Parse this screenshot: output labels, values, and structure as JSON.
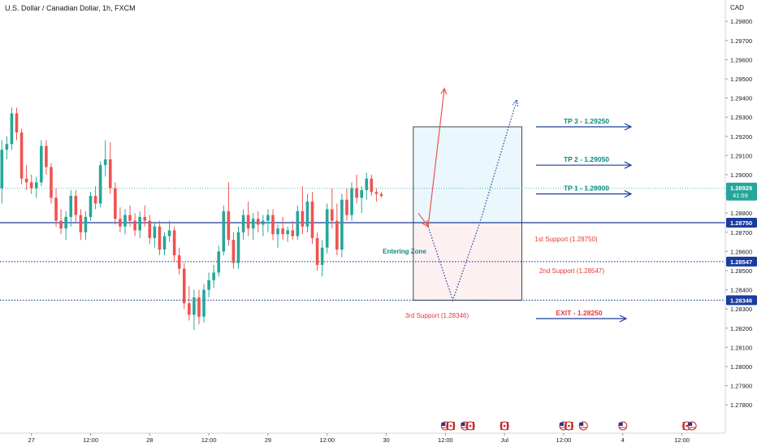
{
  "header": {
    "title": "U.S. Dollar / Canadian Dollar, 1h, FXCM",
    "currency": "CAD"
  },
  "chart_data": {
    "type": "candlestick",
    "title": "U.S. Dollar / Canadian Dollar, 1h, FXCM",
    "ylim": [
      1.2767,
      1.2995
    ],
    "y_ticks": [
      1.298,
      1.297,
      1.296,
      1.295,
      1.294,
      1.293,
      1.292,
      1.291,
      1.29,
      1.289,
      1.288,
      1.287,
      1.286,
      1.285,
      1.284,
      1.283,
      1.282,
      1.281,
      1.28,
      1.279,
      1.278
    ],
    "y_tick_labels": [
      "1.29800",
      "1.29700",
      "1.29600",
      "1.29500",
      "1.29400",
      "1.29300",
      "1.29200",
      "1.29100",
      "1.29000",
      "1.28900",
      "1.28800",
      "1.28700",
      "1.28600",
      "1.28500",
      "1.28400",
      "1.28300",
      "1.28200",
      "1.28100",
      "1.28000",
      "1.27900",
      "1.27800"
    ],
    "x_ticks": [
      {
        "label": "27",
        "i": 6
      },
      {
        "label": "12:00",
        "i": 18
      },
      {
        "label": "28",
        "i": 30
      },
      {
        "label": "12:00",
        "i": 42
      },
      {
        "label": "29",
        "i": 54
      },
      {
        "label": "12:00",
        "i": 66
      },
      {
        "label": "30",
        "i": 78
      },
      {
        "label": "12:00",
        "i": 90
      },
      {
        "label": "Jul",
        "i": 102
      },
      {
        "label": "12:00",
        "i": 114
      },
      {
        "label": "4",
        "i": 126
      },
      {
        "label": "12:00",
        "i": 138
      }
    ],
    "last_candle_index": 77,
    "up_color": "#26a69a",
    "down_color": "#ef5350",
    "candles": [
      [
        1.2893,
        1.2918,
        1.2885,
        1.2913
      ],
      [
        1.2913,
        1.292,
        1.2908,
        1.2916
      ],
      [
        1.2916,
        1.2935,
        1.2913,
        1.2932
      ],
      [
        1.2932,
        1.2935,
        1.2918,
        1.2922
      ],
      [
        1.2922,
        1.2924,
        1.2895,
        1.2898
      ],
      [
        1.2898,
        1.2905,
        1.2892,
        1.2896
      ],
      [
        1.2896,
        1.29,
        1.289,
        1.2893
      ],
      [
        1.2893,
        1.2899,
        1.2888,
        1.2896
      ],
      [
        1.2896,
        1.2918,
        1.2894,
        1.2915
      ],
      [
        1.2915,
        1.2918,
        1.29,
        1.2904
      ],
      [
        1.2904,
        1.2906,
        1.2885,
        1.2888
      ],
      [
        1.2888,
        1.2893,
        1.2873,
        1.2876
      ],
      [
        1.2876,
        1.2882,
        1.2869,
        1.2872
      ],
      [
        1.2872,
        1.2881,
        1.2866,
        1.2878
      ],
      [
        1.2878,
        1.2892,
        1.2873,
        1.2889
      ],
      [
        1.2889,
        1.2892,
        1.2875,
        1.2879
      ],
      [
        1.2879,
        1.2882,
        1.2866,
        1.287
      ],
      [
        1.287,
        1.2881,
        1.2866,
        1.2878
      ],
      [
        1.2878,
        1.2891,
        1.2876,
        1.2889
      ],
      [
        1.2889,
        1.2894,
        1.2882,
        1.2885
      ],
      [
        1.2885,
        1.2907,
        1.2883,
        1.2905
      ],
      [
        1.2905,
        1.2918,
        1.2899,
        1.2908
      ],
      [
        1.2908,
        1.2917,
        1.289,
        1.2893
      ],
      [
        1.2893,
        1.2896,
        1.2874,
        1.2877
      ],
      [
        1.2877,
        1.2883,
        1.287,
        1.2873
      ],
      [
        1.2873,
        1.2882,
        1.2869,
        1.2879
      ],
      [
        1.2879,
        1.2884,
        1.2873,
        1.2876
      ],
      [
        1.2876,
        1.288,
        1.2868,
        1.2871
      ],
      [
        1.2871,
        1.2881,
        1.2867,
        1.2878
      ],
      [
        1.2878,
        1.2884,
        1.2873,
        1.2876
      ],
      [
        1.2876,
        1.2879,
        1.2864,
        1.2867
      ],
      [
        1.2867,
        1.2875,
        1.2862,
        1.2873
      ],
      [
        1.2873,
        1.2876,
        1.2858,
        1.2861
      ],
      [
        1.2861,
        1.287,
        1.2858,
        1.2868
      ],
      [
        1.2868,
        1.2876,
        1.2865,
        1.2871
      ],
      [
        1.2871,
        1.2873,
        1.2855,
        1.2858
      ],
      [
        1.2858,
        1.2862,
        1.2848,
        1.2851
      ],
      [
        1.2851,
        1.2854,
        1.283,
        1.2833
      ],
      [
        1.2833,
        1.2842,
        1.2824,
        1.2827
      ],
      [
        1.2827,
        1.284,
        1.2819,
        1.2836
      ],
      [
        1.2836,
        1.284,
        1.2822,
        1.2826
      ],
      [
        1.2826,
        1.2843,
        1.2823,
        1.284
      ],
      [
        1.284,
        1.2849,
        1.2836,
        1.2845
      ],
      [
        1.2845,
        1.2853,
        1.2841,
        1.2849
      ],
      [
        1.2849,
        1.2863,
        1.2847,
        1.286
      ],
      [
        1.286,
        1.2884,
        1.2858,
        1.2881
      ],
      [
        1.2881,
        1.2896,
        1.2863,
        1.2866
      ],
      [
        1.2866,
        1.287,
        1.2851,
        1.2854
      ],
      [
        1.2854,
        1.2873,
        1.2851,
        1.287
      ],
      [
        1.287,
        1.2882,
        1.2866,
        1.2879
      ],
      [
        1.2879,
        1.2886,
        1.2868,
        1.2872
      ],
      [
        1.2872,
        1.288,
        1.2866,
        1.2877
      ],
      [
        1.2877,
        1.2881,
        1.287,
        1.2874
      ],
      [
        1.2874,
        1.2879,
        1.2868,
        1.2876
      ],
      [
        1.2876,
        1.2882,
        1.287,
        1.2879
      ],
      [
        1.2879,
        1.2882,
        1.2866,
        1.2869
      ],
      [
        1.2869,
        1.2874,
        1.2862,
        1.2872
      ],
      [
        1.2872,
        1.2878,
        1.2866,
        1.2869
      ],
      [
        1.2869,
        1.2873,
        1.2865,
        1.2871
      ],
      [
        1.2871,
        1.2876,
        1.2866,
        1.2868
      ],
      [
        1.2868,
        1.2884,
        1.2866,
        1.2881
      ],
      [
        1.2881,
        1.2894,
        1.2869,
        1.2873
      ],
      [
        1.2873,
        1.289,
        1.287,
        1.2886
      ],
      [
        1.2886,
        1.2891,
        1.2864,
        1.2867
      ],
      [
        1.2867,
        1.287,
        1.285,
        1.2853
      ],
      [
        1.2853,
        1.2866,
        1.2847,
        1.2862
      ],
      [
        1.2862,
        1.2885,
        1.2859,
        1.2882
      ],
      [
        1.2882,
        1.2893,
        1.2872,
        1.2876
      ],
      [
        1.2876,
        1.2885,
        1.2858,
        1.2861
      ],
      [
        1.2861,
        1.289,
        1.2857,
        1.2887
      ],
      [
        1.2887,
        1.2893,
        1.2876,
        1.2879
      ],
      [
        1.2879,
        1.2896,
        1.2876,
        1.2893
      ],
      [
        1.2893,
        1.29,
        1.2885,
        1.2888
      ],
      [
        1.2888,
        1.2894,
        1.288,
        1.2892
      ],
      [
        1.2892,
        1.2901,
        1.2887,
        1.2898
      ],
      [
        1.2898,
        1.29,
        1.2889,
        1.2891
      ],
      [
        1.2891,
        1.2893,
        1.2886,
        1.289
      ],
      [
        1.289,
        1.2891,
        1.2888,
        1.2889
      ]
    ],
    "annotations": {
      "tp_levels": [
        {
          "label": "TP 3 - 1.29250",
          "value": 1.2925
        },
        {
          "label": "TP 2 - 1.29050",
          "value": 1.2905
        },
        {
          "label": "TP 1 - 1.28900",
          "value": 1.289
        }
      ],
      "support_levels": [
        {
          "label": "1st Support (1.28750)",
          "value": 1.2875,
          "price_label": "1.28750",
          "style": "solid"
        },
        {
          "label": "2nd Support (1.28547)",
          "value": 1.28547,
          "price_label": "1.28547",
          "style": "dotted"
        },
        {
          "label": "3rd Support (1.28346)",
          "value": 1.28346,
          "price_label": "1.28346",
          "style": "dotted"
        }
      ],
      "exit": {
        "label": "EXIT - 1.28250",
        "value": 1.2825
      },
      "entering_zone_label": "Entering Zone",
      "current_price": {
        "value": 1.28929,
        "label": "1.28929",
        "countdown": "41:59"
      },
      "zone_box": {
        "x_start_index": 83.5,
        "x_end_index": 105.5,
        "top": 1.2925,
        "mid": 1.2875,
        "bottom": 1.28346
      },
      "scenario_up": [
        [
          84.5,
          1.288
        ],
        [
          86.5,
          1.2873
        ],
        [
          89.8,
          1.2945
        ]
      ],
      "scenario_down": [
        [
          86.5,
          1.2873
        ],
        [
          91.5,
          1.28346
        ],
        [
          97,
          1.2875
        ],
        [
          104.5,
          1.2939
        ]
      ]
    },
    "event_row": [
      {
        "i": 90,
        "flags": [
          "us",
          "ca"
        ]
      },
      {
        "i": 94,
        "flags": [
          "us",
          "ca"
        ]
      },
      {
        "i": 102,
        "flags": [
          "ca"
        ]
      },
      {
        "i": 114,
        "flags": [
          "us",
          "ca"
        ]
      },
      {
        "i": 118,
        "flags": [
          "us"
        ]
      },
      {
        "i": 126,
        "flags": [
          "us"
        ]
      },
      {
        "i": 139,
        "flags": [
          "ca",
          "us"
        ]
      }
    ]
  }
}
